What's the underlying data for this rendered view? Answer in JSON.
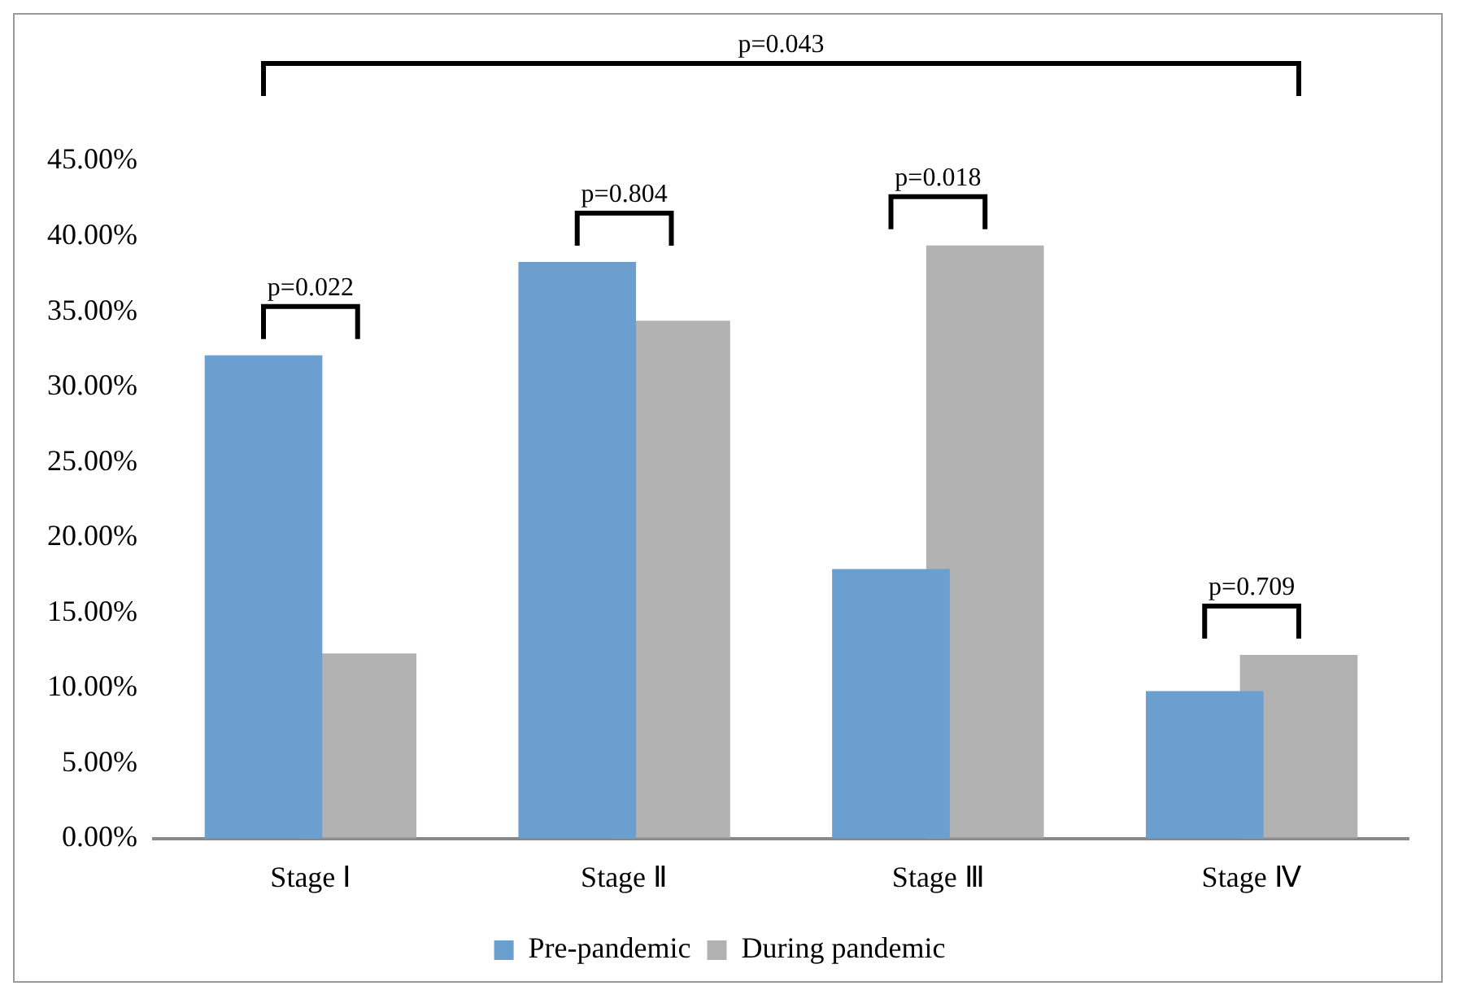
{
  "chart_data": {
    "type": "bar",
    "categories": [
      "Stage Ⅰ",
      "Stage Ⅱ",
      "Stage Ⅲ",
      "Stage Ⅳ"
    ],
    "series": [
      {
        "name": "Pre-pandemic",
        "color": "#6a9fd0",
        "values": [
          32.1,
          38.3,
          17.9,
          9.8
        ]
      },
      {
        "name": "During pandemic",
        "color": "#a5a5a5",
        "values": [
          12.3,
          34.4,
          39.4,
          12.2
        ]
      }
    ],
    "ylim": [
      0,
      45
    ],
    "yticks": [
      {
        "value": 0,
        "label": "0.00%"
      },
      {
        "value": 5,
        "label": "5.00%"
      },
      {
        "value": 10,
        "label": "10.00%"
      },
      {
        "value": 15,
        "label": "15.00%"
      },
      {
        "value": 20,
        "label": "20.00%"
      },
      {
        "value": 25,
        "label": "25.00%"
      },
      {
        "value": 30,
        "label": "30.00%"
      },
      {
        "value": 35,
        "label": "35.00%"
      },
      {
        "value": 40,
        "label": "40.00%"
      },
      {
        "value": 45,
        "label": "45.00%"
      }
    ],
    "annotations": [
      "p=0.022",
      "p=0.804",
      "p=0.018",
      "p=0.709",
      "p=0.043"
    ],
    "grid": false,
    "legend": "bottom"
  }
}
